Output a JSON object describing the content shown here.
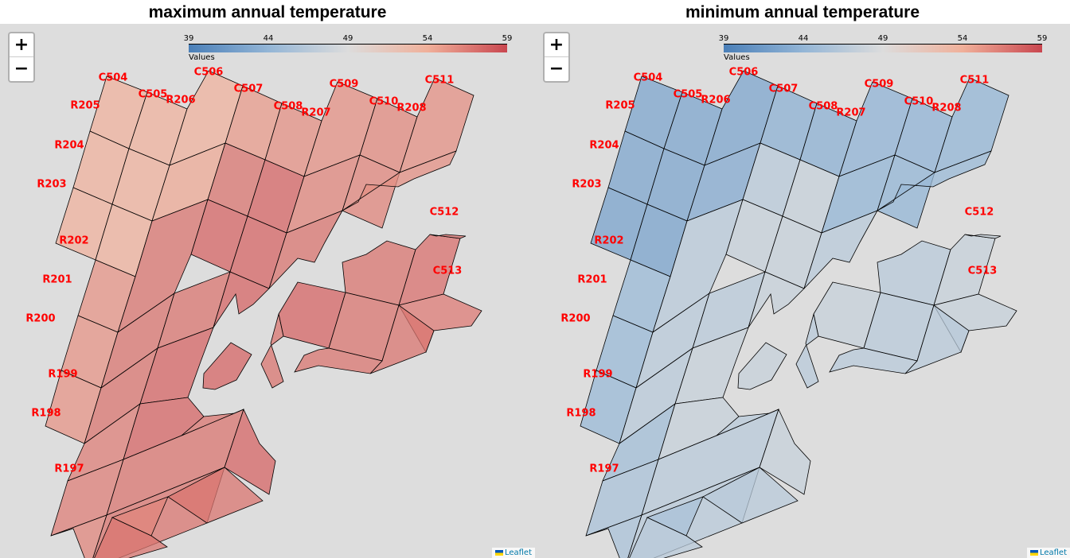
{
  "colors": {
    "map_bg": "#dddddd",
    "cell_stroke": "#000000",
    "label_color": "#ff0000",
    "scale": [
      "#4a7fb8",
      "#93b5d6",
      "#dcdcdc",
      "#f0b09a",
      "#c9464f"
    ]
  },
  "panels": [
    {
      "id": "left",
      "title": "maximum annual temperature",
      "zoom_in": "+",
      "zoom_out": "−",
      "legend": {
        "ticks": [
          "39",
          "44",
          "49",
          "54",
          "59"
        ],
        "label": "Values",
        "min": 39,
        "max": 59
      },
      "attribution": "Leaflet",
      "cells": {
        "C504": 53.8,
        "C505": 53.8,
        "C506": 53.8,
        "C507": 55.0,
        "C508": 55.5,
        "C509": 55.5,
        "C510": 55.8,
        "C511": 55.5,
        "C512": 57.0,
        "C513": 56.5,
        "R205": 53.8,
        "R206": 54.3,
        "R207": 56.0,
        "R208": 55.5,
        "R204": 53.8,
        "R203": 53.8,
        "R202": 55.3,
        "R201": 55.3,
        "R200": 55.3,
        "R199": 56.3,
        "R198": 56.3,
        "R197": 56.0,
        "interior": 56.8,
        "interior_dark": 57.5
      },
      "labels": [
        "C504",
        "C505",
        "C506",
        "C507",
        "C508",
        "C509",
        "C510",
        "C511",
        "C512",
        "C513",
        "R205",
        "R206",
        "R207",
        "R208",
        "R204",
        "R203",
        "R202",
        "R201",
        "R200",
        "R199",
        "R198",
        "R197"
      ]
    },
    {
      "id": "right",
      "title": "minimum annual temperature",
      "zoom_in": "+",
      "zoom_out": "−",
      "legend": {
        "ticks": [
          "39",
          "44",
          "49",
          "54",
          "59"
        ],
        "label": "Values",
        "min": 39,
        "max": 59
      },
      "attribution": "Leaflet",
      "cells": {
        "C504": 42.5,
        "C505": 42.5,
        "C506": 42.5,
        "C507": 43.5,
        "C508": 43.5,
        "C509": 43.8,
        "C510": 43.8,
        "C511": 44.0,
        "C512": 47.5,
        "C513": 47.5,
        "R205": 42.5,
        "R206": 43.0,
        "R207": 44.0,
        "R208": 44.5,
        "R204": 42.5,
        "R203": 42.3,
        "R202": 44.5,
        "R201": 44.5,
        "R200": 44.5,
        "R199": 45.0,
        "R198": 45.5,
        "R197": 45.5,
        "interior": 46.5,
        "interior_dark": 47.5
      },
      "labels": [
        "C504",
        "C505",
        "C506",
        "C507",
        "C508",
        "C509",
        "C510",
        "C511",
        "C512",
        "C513",
        "R205",
        "R206",
        "R207",
        "R208",
        "R204",
        "R203",
        "R202",
        "R201",
        "R200",
        "R199",
        "R198",
        "R197"
      ]
    }
  ]
}
